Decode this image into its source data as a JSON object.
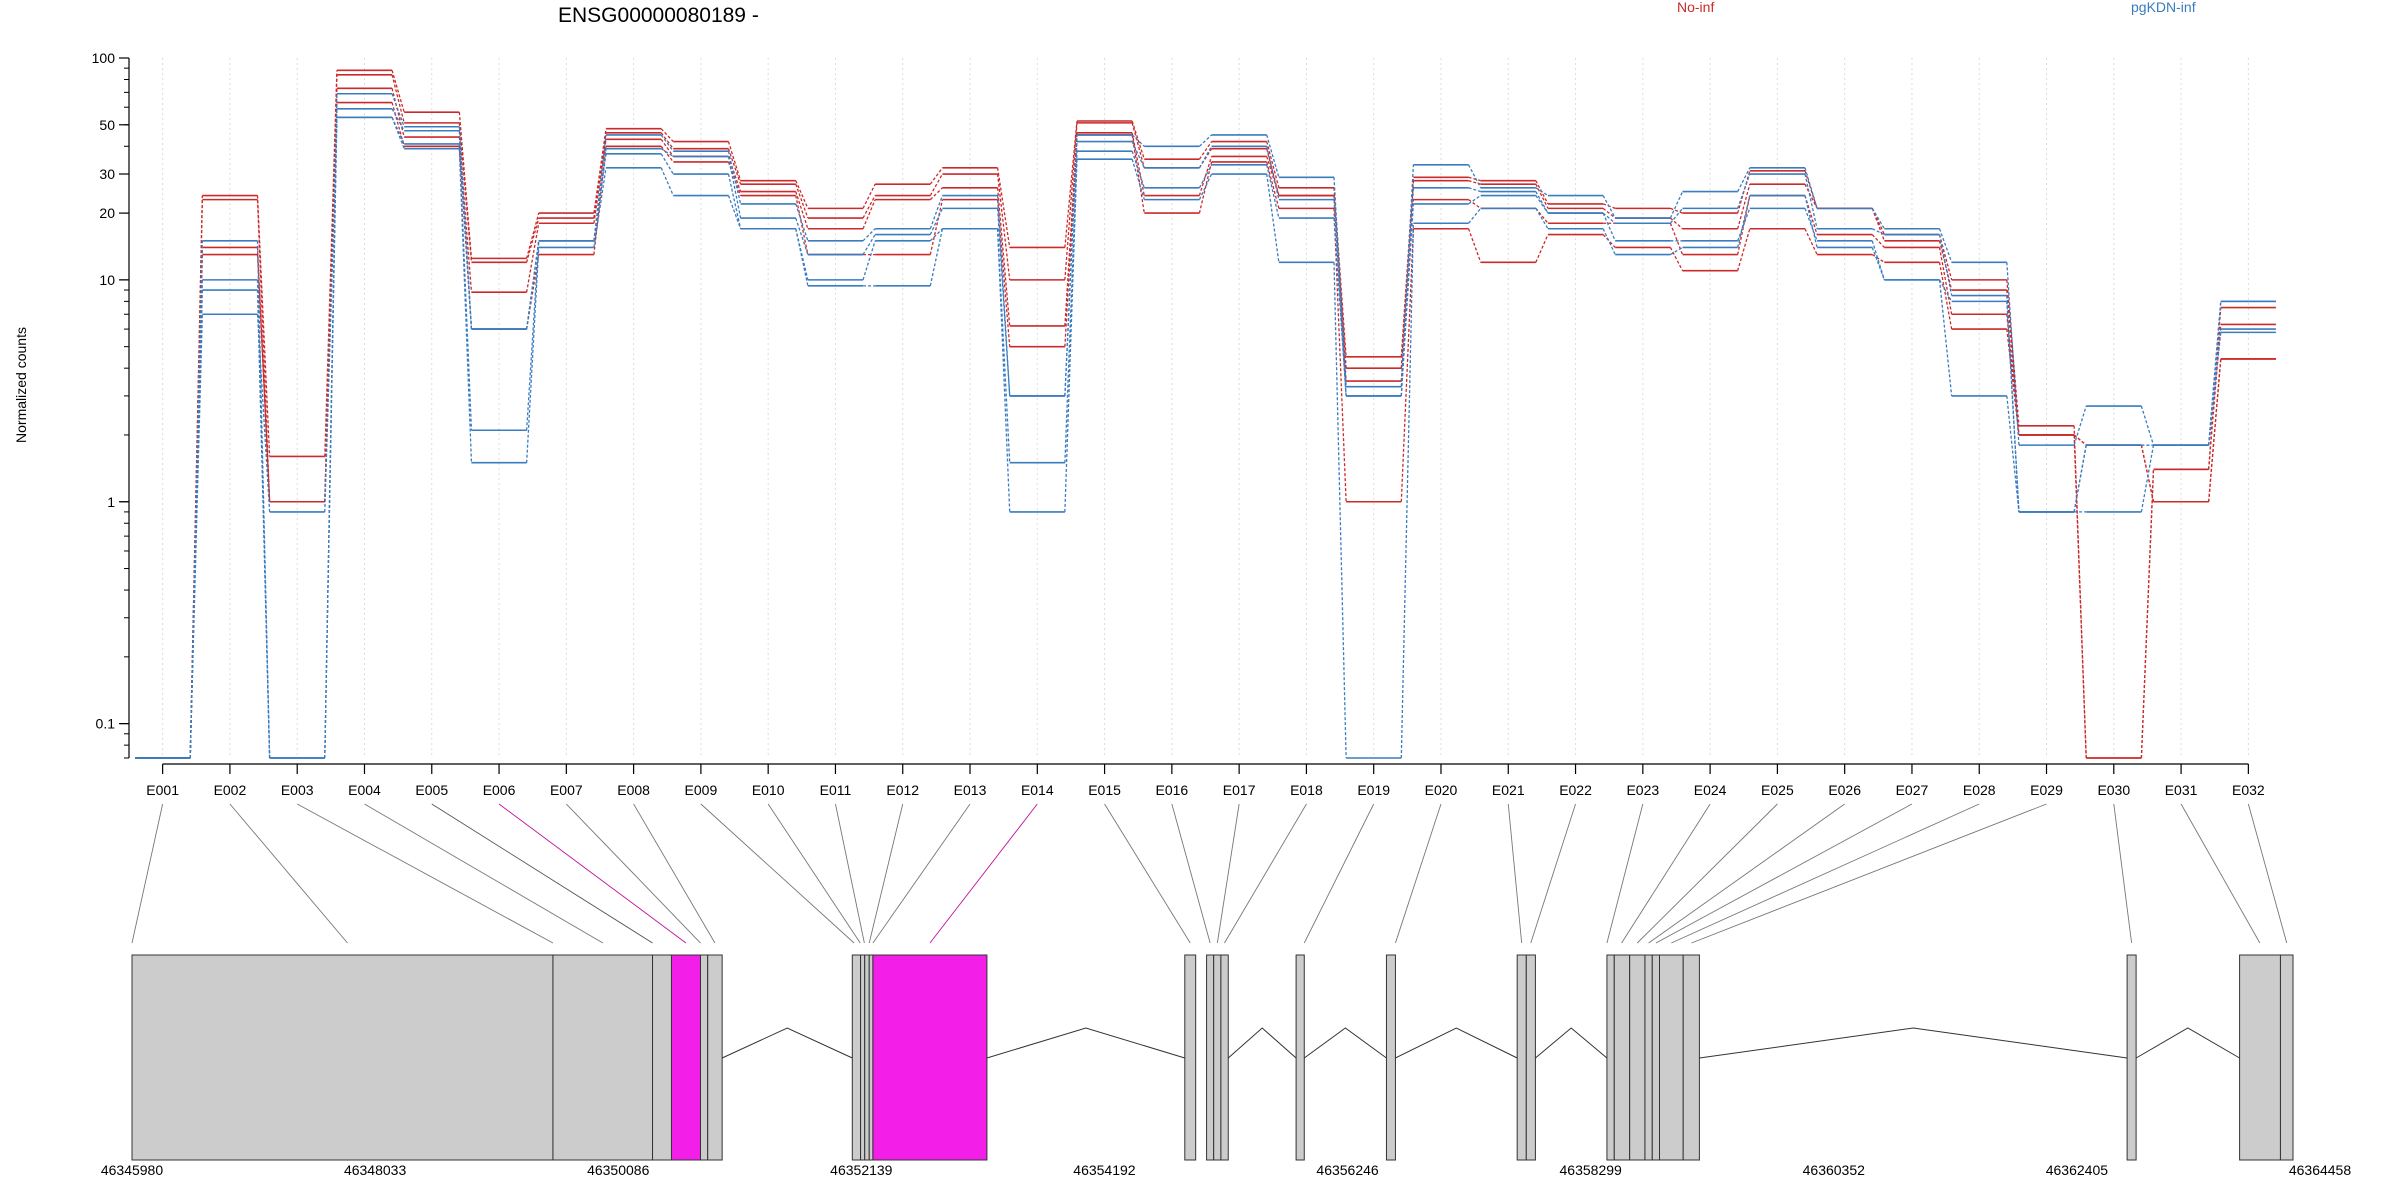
{
  "chart_data": {
    "type": "line",
    "title": "ENSG00000080189 -",
    "ylabel": "Normalized counts",
    "yscale": "log",
    "ylim": [
      0.07,
      100
    ],
    "yticks": [
      "0.1",
      "1",
      "10",
      "20",
      "30",
      "50",
      "100"
    ],
    "categories": [
      "E001",
      "E002",
      "E003",
      "E004",
      "E005",
      "E006",
      "E007",
      "E008",
      "E009",
      "E010",
      "E011",
      "E012",
      "E013",
      "E014",
      "E015",
      "E016",
      "E017",
      "E018",
      "E019",
      "E020",
      "E021",
      "E022",
      "E023",
      "E024",
      "E025",
      "E026",
      "E027",
      "E028",
      "E029",
      "E030",
      "E031",
      "E032"
    ],
    "legend": [
      {
        "name": "No-inf",
        "color": "#cc2a2a"
      },
      {
        "name": "pgKDN-inf",
        "color": "#3a7cc0"
      }
    ],
    "series": [
      {
        "group": "No-inf",
        "values": [
          0.07,
          24,
          1.6,
          88,
          57,
          12.5,
          20,
          48,
          42,
          28,
          21,
          27,
          32,
          14,
          52,
          35,
          42,
          26,
          4.5,
          29,
          28,
          22,
          21,
          20,
          31,
          21,
          16,
          10,
          2.2,
          0.07,
          1.4,
          7.5
        ]
      },
      {
        "group": "No-inf",
        "values": [
          0.07,
          23,
          1.0,
          84,
          51,
          12,
          19,
          46,
          39,
          27,
          19,
          24,
          30,
          10,
          51,
          32,
          39,
          24,
          4.0,
          28,
          27,
          21,
          19,
          17,
          27,
          21,
          15,
          9,
          2.0,
          0.07,
          1.4,
          6.3
        ]
      },
      {
        "group": "No-inf",
        "values": [
          0.07,
          14,
          1.0,
          73,
          44,
          8.8,
          18,
          43,
          36,
          25,
          17,
          23,
          26,
          6.2,
          46,
          24,
          36,
          24,
          3.5,
          23,
          21,
          18,
          18,
          13,
          24,
          16,
          14,
          7,
          2.0,
          1.8,
          1.0,
          4.4
        ]
      },
      {
        "group": "No-inf",
        "values": [
          0.07,
          13,
          1.0,
          63,
          40,
          6.0,
          13,
          40,
          34,
          24,
          13,
          13,
          23,
          5.0,
          45,
          20,
          34,
          21,
          1.0,
          17,
          12,
          16,
          14,
          11,
          17,
          13,
          12,
          6,
          2.0,
          1.8,
          1.0,
          4.4
        ]
      },
      {
        "group": "pgKDN-inf",
        "values": [
          0.07,
          15,
          0.07,
          69,
          49,
          6.0,
          15,
          45,
          38,
          22,
          15,
          17,
          24,
          3.0,
          45,
          40,
          45,
          29,
          3.3,
          33,
          26,
          24,
          19,
          25,
          32,
          21,
          17,
          12,
          1.8,
          2.7,
          1.8,
          8.0
        ]
      },
      {
        "group": "pgKDN-inf",
        "values": [
          0.07,
          10,
          0.07,
          59,
          47,
          6.0,
          15,
          39,
          36,
          19,
          13,
          16,
          21,
          3.0,
          42,
          32,
          40,
          23,
          3.0,
          26,
          25,
          20,
          18,
          21,
          30,
          17,
          16,
          8.5,
          0.9,
          1.8,
          1.8,
          8.0
        ]
      },
      {
        "group": "pgKDN-inf",
        "values": [
          0.07,
          9,
          0.07,
          54,
          41,
          2.1,
          15,
          37,
          30,
          17,
          10,
          15,
          17,
          1.5,
          38,
          26,
          33,
          19,
          3.0,
          22,
          24,
          20,
          15,
          15,
          21,
          15,
          10,
          8.0,
          0.9,
          1.8,
          1.8,
          6.0
        ]
      },
      {
        "group": "pgKDN-inf",
        "values": [
          0.07,
          7,
          0.9,
          54,
          39,
          1.5,
          14,
          32,
          24,
          17,
          9.4,
          9.4,
          17,
          0.9,
          35,
          23,
          30,
          12,
          0.07,
          18,
          21,
          17,
          13,
          14,
          24,
          14,
          10,
          3.0,
          0.9,
          0.9,
          1.8,
          5.8
        ]
      }
    ],
    "gene_model": {
      "coordinate_labels": [
        "46345980",
        "46348033",
        "46350086",
        "46352139",
        "46354192",
        "46356246",
        "46358299",
        "46360352",
        "46362405",
        "46364458"
      ],
      "genomic_range": [
        46345980,
        46364458
      ],
      "exons": [
        {
          "id": "E001",
          "start": 46345980,
          "end": 46349535,
          "color": "#cccccc"
        },
        {
          "id": "E002",
          "start": 46349535,
          "end": 46350376,
          "color": "#cccccc"
        },
        {
          "id": "E005",
          "start": 46350376,
          "end": 46350536,
          "color": "#cccccc"
        },
        {
          "id": "E006",
          "start": 46350536,
          "end": 46350781,
          "color": "#f31ee8"
        },
        {
          "id": "E007",
          "start": 46350781,
          "end": 46350842,
          "color": "#cccccc"
        },
        {
          "id": "E008",
          "start": 46350842,
          "end": 46350964,
          "color": "#cccccc"
        },
        {
          "id": "E009",
          "start": 46352063,
          "end": 46352133,
          "color": "#cccccc"
        },
        {
          "id": "E010",
          "start": 46352133,
          "end": 46352168,
          "color": "#cccccc"
        },
        {
          "id": "E011",
          "start": 46352168,
          "end": 46352206,
          "color": "#cccccc"
        },
        {
          "id": "E012",
          "start": 46352206,
          "end": 46352237,
          "color": "#cccccc"
        },
        {
          "id": "E014",
          "start": 46352237,
          "end": 46353200,
          "color": "#f31ee8"
        },
        {
          "id": "E015",
          "start": 46354871,
          "end": 46354963,
          "color": "#cccccc"
        },
        {
          "id": "E016",
          "start": 46355055,
          "end": 46355115,
          "color": "#cccccc"
        },
        {
          "id": "E017",
          "start": 46355115,
          "end": 46355176,
          "color": "#cccccc"
        },
        {
          "id": "E017b",
          "start": 46355176,
          "end": 46355238,
          "color": "#cccccc"
        },
        {
          "id": "E018",
          "start": 46355811,
          "end": 46355880,
          "color": "#cccccc"
        },
        {
          "id": "E019",
          "start": 46356574,
          "end": 46356650,
          "color": "#cccccc"
        },
        {
          "id": "E020",
          "start": 46357678,
          "end": 46357755,
          "color": "#cccccc"
        },
        {
          "id": "E021",
          "start": 46357755,
          "end": 46357832,
          "color": "#cccccc"
        },
        {
          "id": "E022",
          "start": 46358436,
          "end": 46358498,
          "color": "#cccccc"
        },
        {
          "id": "E023",
          "start": 46358498,
          "end": 46358628,
          "color": "#cccccc"
        },
        {
          "id": "E024",
          "start": 46358628,
          "end": 46358757,
          "color": "#cccccc"
        },
        {
          "id": "E025",
          "start": 46358757,
          "end": 46358819,
          "color": "#cccccc"
        },
        {
          "id": "E026",
          "start": 46358819,
          "end": 46358880,
          "color": "#cccccc"
        },
        {
          "id": "E027",
          "start": 46358880,
          "end": 46359080,
          "color": "#cccccc"
        },
        {
          "id": "E028",
          "start": 46359080,
          "end": 46359217,
          "color": "#cccccc"
        },
        {
          "id": "E029",
          "start": 46362829,
          "end": 46362905,
          "color": "#cccccc"
        },
        {
          "id": "E031",
          "start": 46363779,
          "end": 46364124,
          "color": "#cccccc"
        },
        {
          "id": "E032",
          "start": 46364124,
          "end": 46364230,
          "color": "#cccccc"
        }
      ],
      "connectors": [
        {
          "id": "E001",
          "pos": 46345980
        },
        {
          "id": "E002",
          "pos": 46347800
        },
        {
          "id": "E003",
          "pos": 46349535
        },
        {
          "id": "E004",
          "pos": 46349957
        },
        {
          "id": "E005",
          "pos": 46350376,
          "color": "#555555"
        },
        {
          "id": "E006",
          "pos": 46350658,
          "color": "#c0139b"
        },
        {
          "id": "E007",
          "pos": 46350781
        },
        {
          "id": "E008",
          "pos": 46350903
        },
        {
          "id": "E009",
          "pos": 46352078
        },
        {
          "id": "E010",
          "pos": 46352130
        },
        {
          "id": "E011",
          "pos": 46352165
        },
        {
          "id": "E012",
          "pos": 46352206
        },
        {
          "id": "E013",
          "pos": 46352237
        },
        {
          "id": "E014",
          "pos": 46352719,
          "color": "#c0139b"
        },
        {
          "id": "E015",
          "pos": 46354917
        },
        {
          "id": "E016",
          "pos": 46355085
        },
        {
          "id": "E017",
          "pos": 46355146
        },
        {
          "id": "E018",
          "pos": 46355206
        },
        {
          "id": "E019",
          "pos": 46355880
        },
        {
          "id": "E020",
          "pos": 46356650
        },
        {
          "id": "E021",
          "pos": 46357716
        },
        {
          "id": "E022",
          "pos": 46357793
        },
        {
          "id": "E023",
          "pos": 46358436
        },
        {
          "id": "E024",
          "pos": 46358560
        },
        {
          "id": "E025",
          "pos": 46358692
        },
        {
          "id": "E026",
          "pos": 46358788
        },
        {
          "id": "E027",
          "pos": 46358850
        },
        {
          "id": "E028",
          "pos": 46358980
        },
        {
          "id": "E029",
          "pos": 46359150
        },
        {
          "id": "E030",
          "pos": 46362867
        },
        {
          "id": "E031",
          "pos": 46363950
        },
        {
          "id": "E032",
          "pos": 46364177
        }
      ]
    }
  }
}
